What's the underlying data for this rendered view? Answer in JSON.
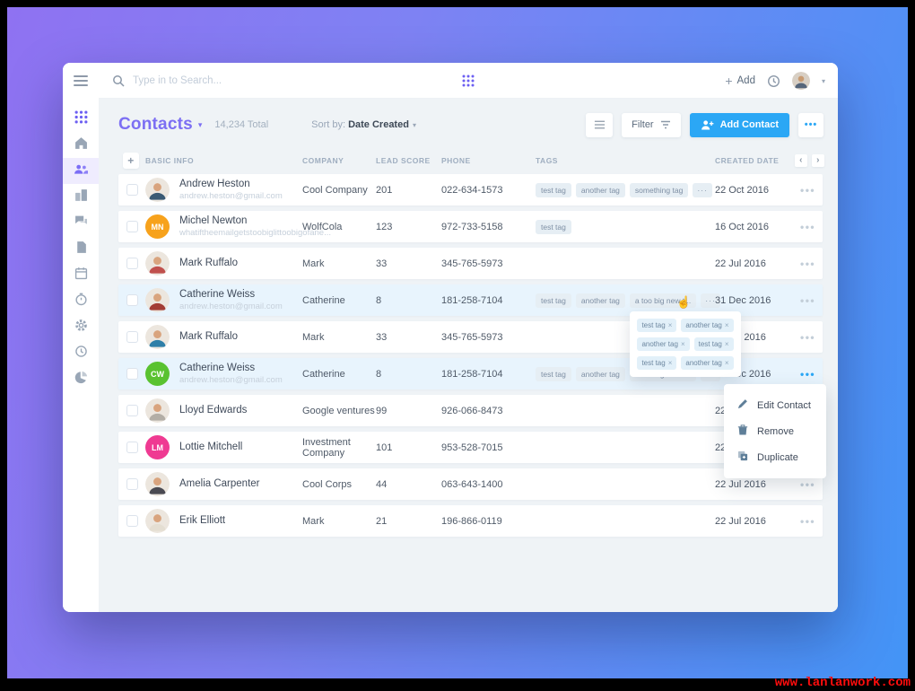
{
  "watermark": "www.lanlanwork.com",
  "colors": {
    "accent_purple": "#7c6ff3",
    "primary_blue": "#2ba7f5",
    "content_bg": "#eff3f6",
    "row_highlight": "#e8f4fd",
    "tag_bg": "#e6eef4"
  },
  "topbar": {
    "search_placeholder": "Type in to Search...",
    "add_label": "Add",
    "icons": [
      "hamburger-menu-icon",
      "search-icon",
      "apps-grid-icon",
      "clock-icon",
      "user-avatar",
      "chevron-down-icon"
    ]
  },
  "sidebar": {
    "items": [
      {
        "name": "apps-grid",
        "accent": true
      },
      {
        "name": "home"
      },
      {
        "name": "contacts",
        "active": true
      },
      {
        "name": "companies"
      },
      {
        "name": "messages"
      },
      {
        "name": "documents"
      },
      {
        "name": "calendar"
      },
      {
        "name": "timer"
      },
      {
        "name": "settings"
      },
      {
        "name": "history"
      },
      {
        "name": "reports-pie"
      }
    ]
  },
  "header": {
    "title": "Contacts",
    "total": "14,234 Total",
    "sort_label": "Sort by:",
    "sort_value": "Date Created",
    "filter_label": "Filter",
    "add_contact_label": "Add Contact",
    "more_label": "..."
  },
  "table": {
    "columns": [
      "BASIC INFO",
      "COMPANY",
      "LEAD SCORE",
      "PHONE",
      "TAGS",
      "CREATED DATE"
    ],
    "rows": [
      {
        "name": "Andrew Heston",
        "email": "andrew.heston@gmail.com",
        "company": "Cool Company",
        "score": "201",
        "phone": "022-634-1573",
        "tags": [
          "test tag",
          "another tag",
          "something tag"
        ],
        "overflow": true,
        "date": "22 Oct 2016",
        "highlighted": false,
        "avatar": {
          "style": "photo",
          "shirt": "#3a5a74"
        }
      },
      {
        "name": "Michel Newton",
        "email": "whatiftheemailgetstoobiglittoobigofane...",
        "company": "WolfCola",
        "score": "123",
        "phone": "972-733-5158",
        "tags": [
          "test tag"
        ],
        "overflow": false,
        "date": "16 Oct 2016",
        "highlighted": false,
        "avatar": {
          "style": "initials",
          "initials": "MN",
          "color": "#f7a21c"
        }
      },
      {
        "name": "Mark Ruffalo",
        "email": "",
        "company": "Mark",
        "score": "33",
        "phone": "345-765-5973",
        "tags": [],
        "overflow": false,
        "date": "22 Jul 2016",
        "highlighted": false,
        "avatar": {
          "style": "photo",
          "shirt": "#c0504d"
        }
      },
      {
        "name": "Catherine Weiss",
        "email": "andrew.heston@gmail.com",
        "company": "Catherine",
        "score": "8",
        "phone": "181-258-7104",
        "tags": [
          "test tag",
          "another tag",
          "a too big new t..."
        ],
        "overflow": true,
        "date": "31 Dec 2016",
        "highlighted": true,
        "avatar": {
          "style": "photo",
          "shirt": "#a33c35"
        }
      },
      {
        "name": "Mark Ruffalo",
        "email": "",
        "company": "Mark",
        "score": "33",
        "phone": "345-765-5973",
        "tags": [],
        "overflow": false,
        "date": "22 Jul 2016",
        "highlighted": false,
        "avatar": {
          "style": "photo",
          "shirt": "#2e7fa8"
        }
      },
      {
        "name": "Catherine Weiss",
        "email": "andrew.heston@gmail.com",
        "company": "Catherine",
        "score": "8",
        "phone": "181-258-7104",
        "tags": [
          "test tag",
          "another tag",
          "a too big new t..."
        ],
        "overflow": true,
        "date": "31 Dec 2016",
        "highlighted": true,
        "menu_open": true,
        "avatar": {
          "style": "initials",
          "initials": "CW",
          "color": "#59c230"
        }
      },
      {
        "name": "Lloyd Edwards",
        "email": "",
        "company": "Google ventures",
        "score": "99",
        "phone": "926-066-8473",
        "tags": [],
        "overflow": false,
        "date": "22 Jul 2016",
        "highlighted": false,
        "avatar": {
          "style": "photo",
          "shirt": "#b3aea6"
        }
      },
      {
        "name": "Lottie Mitchell",
        "email": "",
        "company": "Investment Company",
        "score": "101",
        "phone": "953-528-7015",
        "tags": [],
        "overflow": false,
        "date": "22 Jul 2016",
        "highlighted": false,
        "avatar": {
          "style": "initials",
          "initials": "LM",
          "color": "#ef3a92"
        }
      },
      {
        "name": "Amelia Carpenter",
        "email": "",
        "company": "Cool Corps",
        "score": "44",
        "phone": "063-643-1400",
        "tags": [],
        "overflow": false,
        "date": "22 Jul 2016",
        "highlighted": false,
        "avatar": {
          "style": "photo",
          "shirt": "#4a4a52"
        }
      },
      {
        "name": "Erik Elliott",
        "email": "",
        "company": "Mark",
        "score": "21",
        "phone": "196-866-0119",
        "tags": [],
        "overflow": false,
        "date": "22 Jul 2016",
        "highlighted": false,
        "avatar": {
          "style": "photo",
          "shirt": "#e4ded2"
        }
      }
    ]
  },
  "tag_popover": {
    "rows": [
      [
        "test tag",
        "another tag"
      ],
      [
        "another tag",
        "test tag"
      ],
      [
        "test tag",
        "another tag"
      ]
    ],
    "remove_glyph": "×"
  },
  "context_menu": {
    "items": [
      {
        "label": "Edit Contact",
        "icon": "pencil"
      },
      {
        "label": "Remove",
        "icon": "trash"
      },
      {
        "label": "Duplicate",
        "icon": "duplicate"
      }
    ]
  }
}
